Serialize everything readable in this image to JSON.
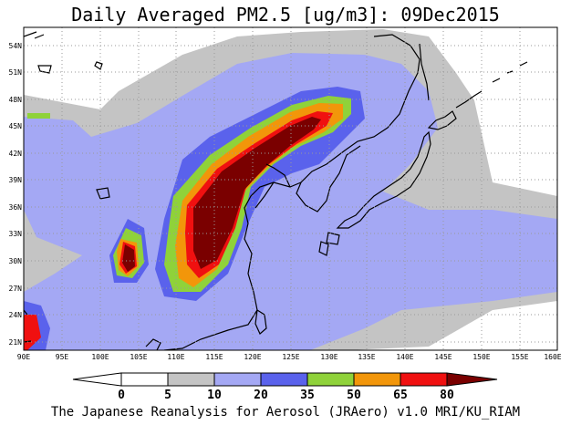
{
  "title": "Daily Averaged PM2.5 [ug/m3]: 09Dec2015",
  "footer": "The Japanese Reanalysis for Aerosol (JRAero) v1.0 MRI/KU_RIAM",
  "map": {
    "lon_range": [
      90,
      160
    ],
    "lat_range": [
      19.5,
      55.5
    ],
    "lon_ticks": [
      "90E",
      "95E",
      "100E",
      "105E",
      "110E",
      "115E",
      "120E",
      "125E",
      "130E",
      "135E",
      "140E",
      "145E",
      "150E",
      "155E",
      "160E"
    ],
    "lat_ticks": [
      "21N",
      "24N",
      "27N",
      "30N",
      "33N",
      "36N",
      "39N",
      "42N",
      "45N",
      "48N",
      "51N",
      "54N"
    ],
    "grid": true
  },
  "legend": {
    "labels": [
      "0",
      "5",
      "10",
      "20",
      "35",
      "50",
      "65",
      "80"
    ],
    "colors": [
      "#ffffff",
      "#c4c4c4",
      "#a4a8f4",
      "#5a62ec",
      "#8fd23a",
      "#f2960a",
      "#f01010",
      "#7a0000"
    ]
  },
  "colors": {
    "land_line": "#000000",
    "grid": "#9a9a9a"
  }
}
